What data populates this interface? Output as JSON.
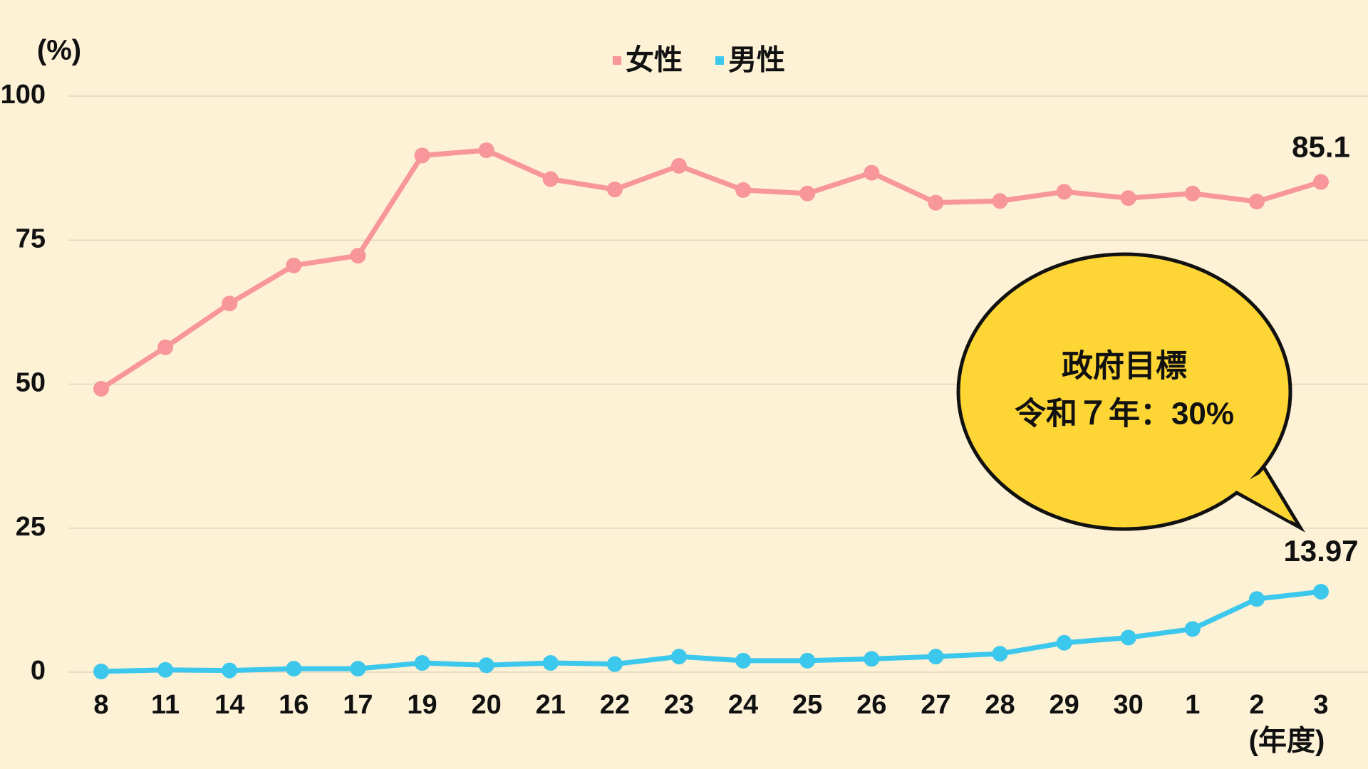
{
  "chart_data": {
    "type": "line",
    "y_label": "(%)",
    "x_label": "(年度)",
    "categories": [
      "8",
      "11",
      "14",
      "16",
      "17",
      "19",
      "20",
      "21",
      "22",
      "23",
      "24",
      "25",
      "26",
      "27",
      "28",
      "29",
      "30",
      "1",
      "2",
      "3"
    ],
    "series": [
      {
        "name": "女性",
        "color": "#f7969b",
        "values": [
          49.2,
          56.4,
          64.0,
          70.6,
          72.3,
          89.7,
          90.6,
          85.6,
          83.8,
          87.9,
          83.7,
          83.1,
          86.7,
          81.5,
          81.8,
          83.4,
          82.3,
          83.1,
          81.7,
          85.1
        ]
      },
      {
        "name": "男性",
        "color": "#3cc8ec",
        "values": [
          0.12,
          0.4,
          0.3,
          0.6,
          0.6,
          1.6,
          1.2,
          1.6,
          1.4,
          2.7,
          2.0,
          2.0,
          2.3,
          2.7,
          3.2,
          5.1,
          6.0,
          7.5,
          12.7,
          13.97
        ]
      }
    ],
    "ylim": [
      0,
      100
    ],
    "yticks": [
      0,
      25,
      50,
      75,
      100
    ],
    "grid": true,
    "annotation": [
      "政府目標",
      "令和７年：30%"
    ]
  }
}
